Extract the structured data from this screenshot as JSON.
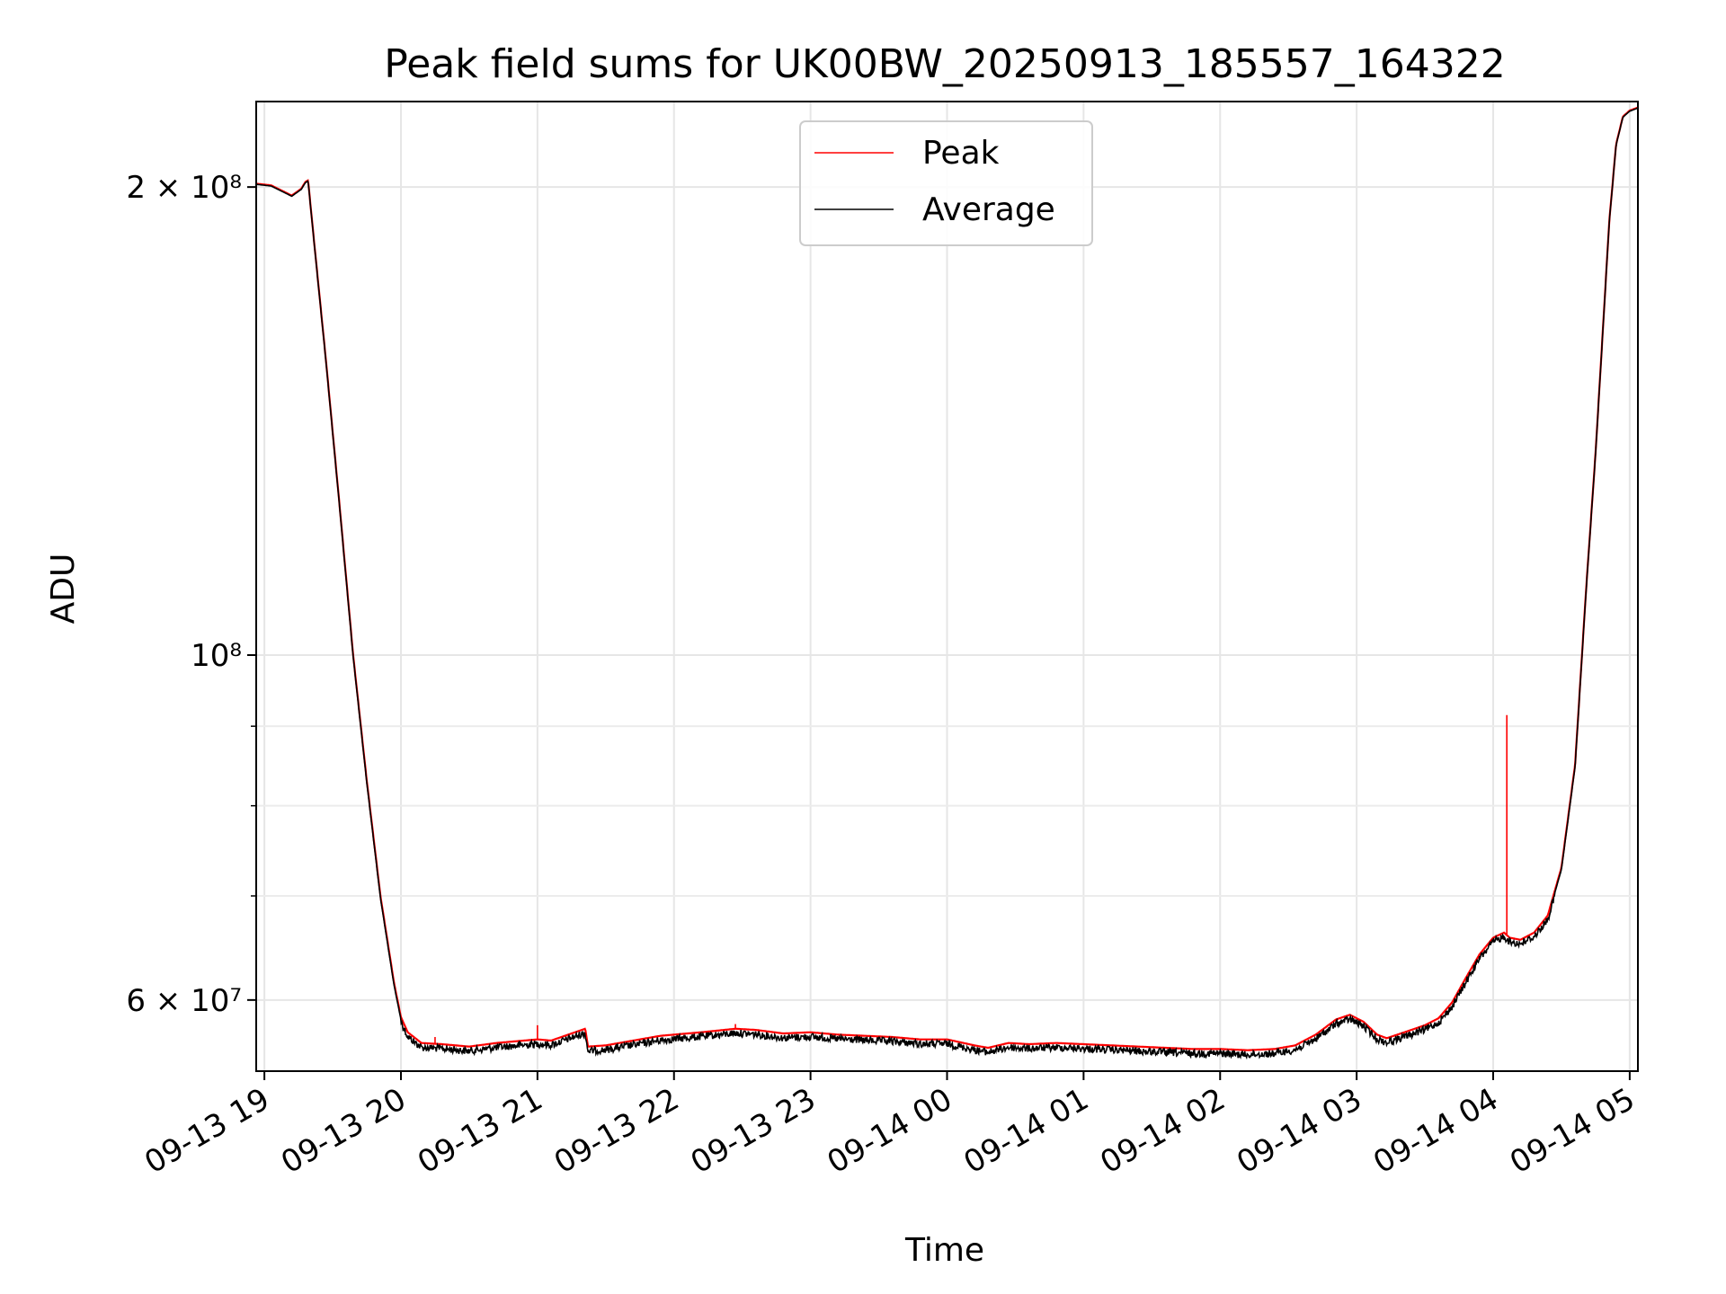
{
  "chart_data": {
    "type": "line",
    "title": "Peak field sums for UK00BW_20250913_185557_164322",
    "xlabel": "Time",
    "ylabel": "ADU",
    "yscale": "log",
    "ylim": [
      54000000,
      227000000
    ],
    "xlim_hours_since_0913_1900": [
      -0.06,
      10.06
    ],
    "grid": true,
    "legend_position": "top-center",
    "x_ticks": [
      {
        "label": "09-13 19",
        "value": 0
      },
      {
        "label": "09-13 20",
        "value": 1
      },
      {
        "label": "09-13 21",
        "value": 2
      },
      {
        "label": "09-13 22",
        "value": 3
      },
      {
        "label": "09-13 23",
        "value": 4
      },
      {
        "label": "09-14 00",
        "value": 5
      },
      {
        "label": "09-14 01",
        "value": 6
      },
      {
        "label": "09-14 02",
        "value": 7
      },
      {
        "label": "09-14 03",
        "value": 8
      },
      {
        "label": "09-14 04",
        "value": 9
      },
      {
        "label": "09-14 05",
        "value": 10
      }
    ],
    "y_ticks_major": [
      {
        "label": "2 × 10⁸",
        "value": 200000000
      },
      {
        "label": "10⁸",
        "value": 100000000
      },
      {
        "label": "6 × 10⁷",
        "value": 60000000
      }
    ],
    "y_ticks_minor": [
      70000000,
      80000000,
      90000000
    ],
    "series": [
      {
        "name": "Peak",
        "color": "#ff0000",
        "points": [
          [
            -0.06,
            201000000
          ],
          [
            0.05,
            200500000
          ],
          [
            0.15,
            198500000
          ],
          [
            0.2,
            197500000
          ],
          [
            0.27,
            199500000
          ],
          [
            0.3,
            201500000
          ],
          [
            0.32,
            202000000
          ],
          [
            0.36,
            186000000
          ],
          [
            0.45,
            155000000
          ],
          [
            0.55,
            125000000
          ],
          [
            0.65,
            100000000
          ],
          [
            0.75,
            83000000
          ],
          [
            0.85,
            70000000
          ],
          [
            0.95,
            61500000
          ],
          [
            1.0,
            58500000
          ],
          [
            1.05,
            57200000
          ],
          [
            1.15,
            56300000
          ],
          [
            1.3,
            56200000
          ],
          [
            1.5,
            56000000
          ],
          [
            1.7,
            56300000
          ],
          [
            1.9,
            56500000
          ],
          [
            2.0,
            56600000
          ],
          [
            2.1,
            56500000
          ],
          [
            2.2,
            56900000
          ],
          [
            2.3,
            57300000
          ],
          [
            2.35,
            57500000
          ],
          [
            2.37,
            56000000
          ],
          [
            2.5,
            56100000
          ],
          [
            2.7,
            56500000
          ],
          [
            2.9,
            56900000
          ],
          [
            3.0,
            57000000
          ],
          [
            3.2,
            57200000
          ],
          [
            3.45,
            57500000
          ],
          [
            3.6,
            57400000
          ],
          [
            3.8,
            57100000
          ],
          [
            4.0,
            57200000
          ],
          [
            4.2,
            57000000
          ],
          [
            4.4,
            56900000
          ],
          [
            4.6,
            56800000
          ],
          [
            4.8,
            56600000
          ],
          [
            5.0,
            56600000
          ],
          [
            5.2,
            56100000
          ],
          [
            5.3,
            55900000
          ],
          [
            5.45,
            56300000
          ],
          [
            5.6,
            56200000
          ],
          [
            5.8,
            56300000
          ],
          [
            6.0,
            56200000
          ],
          [
            6.2,
            56100000
          ],
          [
            6.4,
            56000000
          ],
          [
            6.6,
            55900000
          ],
          [
            6.8,
            55800000
          ],
          [
            7.0,
            55800000
          ],
          [
            7.2,
            55700000
          ],
          [
            7.4,
            55800000
          ],
          [
            7.55,
            56100000
          ],
          [
            7.7,
            57000000
          ],
          [
            7.85,
            58300000
          ],
          [
            7.95,
            58700000
          ],
          [
            8.05,
            58100000
          ],
          [
            8.15,
            57000000
          ],
          [
            8.22,
            56700000
          ],
          [
            8.35,
            57200000
          ],
          [
            8.5,
            57800000
          ],
          [
            8.6,
            58400000
          ],
          [
            8.7,
            59800000
          ],
          [
            8.8,
            62000000
          ],
          [
            8.9,
            64200000
          ],
          [
            9.0,
            65800000
          ],
          [
            9.08,
            66300000
          ],
          [
            9.12,
            65800000
          ],
          [
            9.2,
            65600000
          ],
          [
            9.3,
            66300000
          ],
          [
            9.4,
            68000000
          ],
          [
            9.5,
            73000000
          ],
          [
            9.6,
            85000000
          ],
          [
            9.68,
            110000000
          ],
          [
            9.75,
            135000000
          ],
          [
            9.8,
            160000000
          ],
          [
            9.85,
            190000000
          ],
          [
            9.9,
            213000000
          ],
          [
            9.95,
            222000000
          ],
          [
            10.0,
            224000000
          ],
          [
            10.06,
            225000000
          ]
        ],
        "spikes": [
          {
            "x": 2.0,
            "value": 57800000
          },
          {
            "x": 1.25,
            "value": 56800000
          },
          {
            "x": 3.45,
            "value": 57900000
          },
          {
            "x": 9.1,
            "value": 91500000
          }
        ]
      },
      {
        "name": "Average",
        "color": "#000000",
        "points": [
          [
            -0.06,
            200800000
          ],
          [
            0.05,
            200300000
          ],
          [
            0.15,
            198300000
          ],
          [
            0.2,
            197300000
          ],
          [
            0.27,
            199300000
          ],
          [
            0.3,
            201300000
          ],
          [
            0.32,
            201800000
          ],
          [
            0.36,
            185800000
          ],
          [
            0.45,
            154800000
          ],
          [
            0.55,
            124800000
          ],
          [
            0.65,
            99800000
          ],
          [
            0.75,
            82800000
          ],
          [
            0.85,
            69800000
          ],
          [
            0.95,
            61300000
          ],
          [
            1.0,
            58300000
          ],
          [
            1.05,
            57000000
          ],
          [
            1.15,
            56100000
          ],
          [
            1.3,
            56000000
          ],
          [
            1.5,
            55800000
          ],
          [
            1.7,
            56100000
          ],
          [
            1.9,
            56300000
          ],
          [
            2.0,
            56400000
          ],
          [
            2.1,
            56300000
          ],
          [
            2.2,
            56700000
          ],
          [
            2.3,
            57100000
          ],
          [
            2.35,
            57300000
          ],
          [
            2.37,
            55800000
          ],
          [
            2.5,
            55900000
          ],
          [
            2.7,
            56300000
          ],
          [
            2.9,
            56700000
          ],
          [
            3.0,
            56800000
          ],
          [
            3.2,
            57000000
          ],
          [
            3.45,
            57300000
          ],
          [
            3.6,
            57200000
          ],
          [
            3.8,
            56900000
          ],
          [
            4.0,
            57000000
          ],
          [
            4.2,
            56800000
          ],
          [
            4.4,
            56700000
          ],
          [
            4.6,
            56600000
          ],
          [
            4.8,
            56400000
          ],
          [
            5.0,
            56400000
          ],
          [
            5.2,
            55900000
          ],
          [
            5.3,
            55700000
          ],
          [
            5.45,
            56100000
          ],
          [
            5.6,
            56000000
          ],
          [
            5.8,
            56100000
          ],
          [
            6.0,
            56000000
          ],
          [
            6.2,
            55900000
          ],
          [
            6.4,
            55800000
          ],
          [
            6.6,
            55700000
          ],
          [
            6.8,
            55600000
          ],
          [
            7.0,
            55600000
          ],
          [
            7.2,
            55500000
          ],
          [
            7.4,
            55600000
          ],
          [
            7.55,
            55900000
          ],
          [
            7.7,
            56800000
          ],
          [
            7.85,
            58100000
          ],
          [
            7.95,
            58500000
          ],
          [
            8.05,
            57900000
          ],
          [
            8.15,
            56800000
          ],
          [
            8.22,
            56500000
          ],
          [
            8.35,
            57000000
          ],
          [
            8.5,
            57600000
          ],
          [
            8.6,
            58200000
          ],
          [
            8.7,
            59600000
          ],
          [
            8.8,
            61800000
          ],
          [
            8.9,
            64000000
          ],
          [
            9.0,
            65600000
          ],
          [
            9.08,
            66100000
          ],
          [
            9.12,
            65600000
          ],
          [
            9.2,
            65400000
          ],
          [
            9.3,
            66100000
          ],
          [
            9.4,
            67800000
          ],
          [
            9.5,
            72800000
          ],
          [
            9.6,
            84800000
          ],
          [
            9.68,
            109800000
          ],
          [
            9.75,
            134800000
          ],
          [
            9.8,
            159800000
          ],
          [
            9.85,
            189800000
          ],
          [
            9.9,
            212800000
          ],
          [
            9.95,
            221800000
          ],
          [
            10.0,
            223800000
          ],
          [
            10.06,
            224800000
          ]
        ],
        "noise_amplitude_fraction": 0.006
      }
    ]
  }
}
